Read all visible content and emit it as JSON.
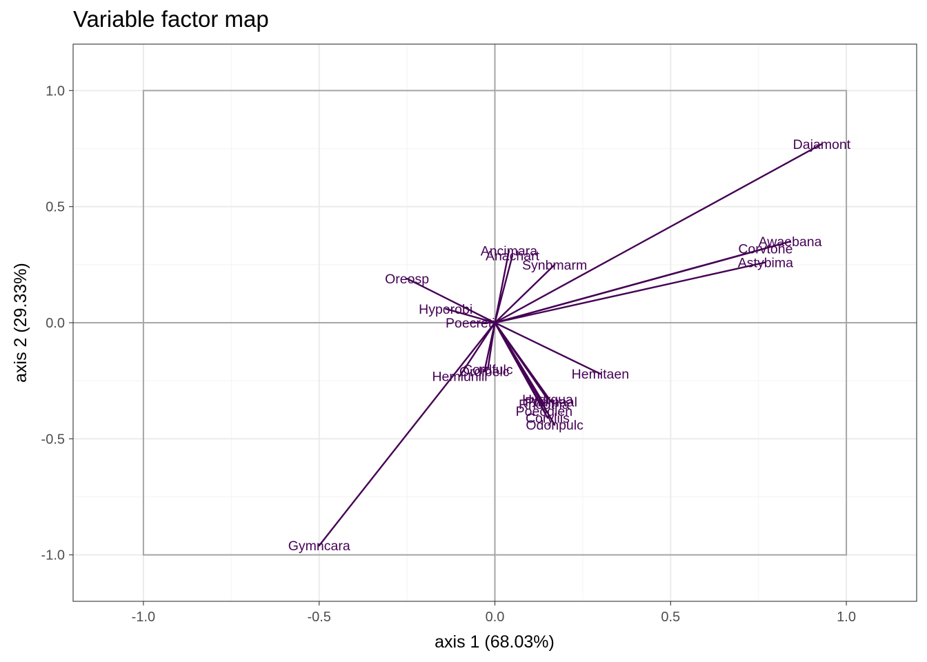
{
  "chart_data": {
    "type": "scatter",
    "subtype": "variable-factor-map",
    "title": "Variable factor map",
    "xlabel": "axis 1 (68.03%)",
    "ylabel": "axis 2 (29.33%)",
    "xlim": [
      -1.2,
      1.2
    ],
    "ylim": [
      -1.2,
      1.2
    ],
    "x_ticks": [
      -1.0,
      -0.5,
      0.0,
      0.5,
      1.0
    ],
    "x_tick_labels": [
      "-1.0",
      "-0.5",
      "0.0",
      "0.5",
      "1.0"
    ],
    "y_ticks": [
      -1.0,
      -0.5,
      0.0,
      0.5,
      1.0
    ],
    "y_tick_labels": [
      "-1.0",
      "-0.5",
      "0.0",
      "0.5",
      "1.0"
    ],
    "grid": true,
    "unit_box": [
      -1,
      1
    ],
    "colors": {
      "arrow": "#440154",
      "label": "#440154",
      "panel_border": "#333333",
      "grid_major": "#ebebeb",
      "grid_minor": "#f4f4f4",
      "reference_lines": "#a6a6a6"
    },
    "variables": [
      {
        "name": "Dajamont",
        "x": 0.93,
        "y": 0.77
      },
      {
        "name": "Awaebana",
        "x": 0.84,
        "y": 0.35
      },
      {
        "name": "Corvtone",
        "x": 0.77,
        "y": 0.32
      },
      {
        "name": "Astybima",
        "x": 0.77,
        "y": 0.26
      },
      {
        "name": "Ancimara",
        "x": 0.04,
        "y": 0.31
      },
      {
        "name": "Anachart",
        "x": 0.05,
        "y": 0.29
      },
      {
        "name": "Synbmarm",
        "x": 0.17,
        "y": 0.25
      },
      {
        "name": "Oreosp",
        "x": -0.25,
        "y": 0.19
      },
      {
        "name": "Hyporobi",
        "x": -0.14,
        "y": 0.06
      },
      {
        "name": "Poecreti",
        "x": -0.07,
        "y": 0.0
      },
      {
        "name": "Hemitaen",
        "x": 0.3,
        "y": -0.22
      },
      {
        "name": "Ordibelc",
        "x": -0.03,
        "y": -0.21
      },
      {
        "name": "Cordfulc",
        "x": -0.02,
        "y": -0.2
      },
      {
        "name": "Hemiuniil",
        "x": -0.1,
        "y": -0.23
      },
      {
        "name": "Ptidmaal",
        "x": 0.16,
        "y": -0.34
      },
      {
        "name": "Hydrqua",
        "x": 0.15,
        "y": -0.33
      },
      {
        "name": "Rhodtria",
        "x": 0.14,
        "y": -0.35
      },
      {
        "name": "Poeodien",
        "x": 0.14,
        "y": -0.38
      },
      {
        "name": "Coryliis",
        "x": 0.15,
        "y": -0.41
      },
      {
        "name": "Odonpulc",
        "x": 0.17,
        "y": -0.44
      },
      {
        "name": "Gymncara",
        "x": -0.5,
        "y": -0.96
      }
    ]
  }
}
